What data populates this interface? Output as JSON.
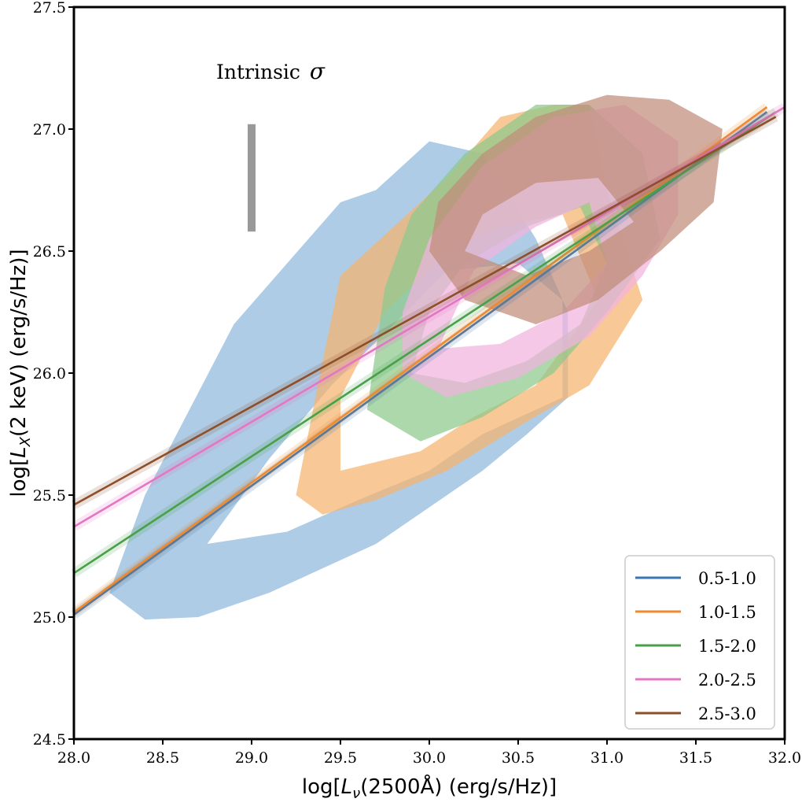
{
  "chart_data": {
    "type": "scatter",
    "title": "",
    "xlabel_parts": [
      "log[",
      "L",
      "ν",
      "(2500Å) (erg/s/Hz)]"
    ],
    "ylabel_parts": [
      "log[",
      "L",
      "X",
      "(2 keV) (erg/s/Hz)]"
    ],
    "xlim": [
      28.0,
      32.0
    ],
    "ylim": [
      24.5,
      27.5
    ],
    "xticks": [
      28.0,
      28.5,
      29.0,
      29.5,
      30.0,
      30.5,
      31.0,
      31.5,
      32.0
    ],
    "yticks": [
      24.5,
      25.0,
      25.5,
      26.0,
      26.5,
      27.0,
      27.5
    ],
    "xtick_labels": [
      "28.0",
      "28.5",
      "29.0",
      "29.5",
      "30.0",
      "30.5",
      "31.0",
      "31.5",
      "32.0"
    ],
    "ytick_labels": [
      "24.5",
      "25.0",
      "25.5",
      "26.0",
      "26.5",
      "27.0",
      "27.5"
    ],
    "legend_position": "lower-right",
    "annotation": {
      "label": "Intrinsic",
      "symbol": "σ",
      "bar_x": 29.0,
      "bar_y": [
        26.58,
        27.02
      ]
    },
    "series": [
      {
        "name": "0.5-1.0",
        "color": "#3a75b0",
        "fill": "#8fb8dc",
        "fit": {
          "x": [
            28.0,
            31.9
          ],
          "y": [
            25.01,
            27.07
          ]
        },
        "contour_outer": [
          [
            28.2,
            25.1
          ],
          [
            28.4,
            24.99
          ],
          [
            28.7,
            25.0
          ],
          [
            29.1,
            25.1
          ],
          [
            29.4,
            25.2
          ],
          [
            29.7,
            25.3
          ],
          [
            30.0,
            25.45
          ],
          [
            30.3,
            25.6
          ],
          [
            30.55,
            25.75
          ],
          [
            30.78,
            25.9
          ],
          [
            30.78,
            26.25
          ],
          [
            30.6,
            26.55
          ],
          [
            30.3,
            26.9
          ],
          [
            30.0,
            26.95
          ],
          [
            29.7,
            26.75
          ],
          [
            29.5,
            26.7
          ],
          [
            29.2,
            26.45
          ],
          [
            28.9,
            26.2
          ],
          [
            28.65,
            25.85
          ],
          [
            28.4,
            25.5
          ],
          [
            28.2,
            25.1
          ]
        ],
        "contour_inner": [
          [
            28.75,
            25.3
          ],
          [
            29.2,
            25.35
          ],
          [
            29.6,
            25.48
          ],
          [
            30.0,
            25.6
          ],
          [
            30.3,
            25.75
          ],
          [
            30.75,
            25.9
          ],
          [
            30.75,
            26.3
          ],
          [
            30.5,
            26.45
          ],
          [
            30.1,
            26.42
          ],
          [
            29.8,
            26.2
          ],
          [
            29.45,
            25.95
          ],
          [
            29.1,
            25.65
          ],
          [
            28.75,
            25.3
          ]
        ]
      },
      {
        "name": "1.0-1.5",
        "color": "#ef8a2e",
        "fill": "#f6b36f",
        "fit": {
          "x": [
            28.0,
            31.9
          ],
          "y": [
            25.02,
            27.09
          ]
        },
        "contour_outer": [
          [
            29.25,
            25.5
          ],
          [
            29.4,
            25.42
          ],
          [
            29.7,
            25.48
          ],
          [
            30.1,
            25.6
          ],
          [
            30.5,
            25.78
          ],
          [
            30.9,
            25.95
          ],
          [
            31.2,
            26.3
          ],
          [
            31.0,
            26.75
          ],
          [
            30.9,
            27.1
          ],
          [
            30.7,
            27.1
          ],
          [
            30.4,
            27.05
          ],
          [
            30.1,
            26.8
          ],
          [
            29.8,
            26.6
          ],
          [
            29.5,
            26.4
          ],
          [
            29.4,
            26.05
          ],
          [
            29.25,
            25.5
          ]
        ],
        "contour_inner": [
          [
            29.5,
            25.6
          ],
          [
            29.95,
            25.68
          ],
          [
            30.25,
            25.82
          ],
          [
            30.6,
            25.95
          ],
          [
            30.95,
            26.3
          ],
          [
            30.75,
            26.65
          ],
          [
            30.4,
            26.6
          ],
          [
            30.1,
            26.5
          ],
          [
            29.75,
            26.25
          ],
          [
            29.5,
            25.9
          ],
          [
            29.5,
            25.6
          ]
        ]
      },
      {
        "name": "1.5-2.0",
        "color": "#4aa04a",
        "fill": "#8cc98c",
        "fit": {
          "x": [
            28.0,
            31.95
          ],
          "y": [
            25.18,
            27.07
          ]
        },
        "contour_outer": [
          [
            29.65,
            25.85
          ],
          [
            29.95,
            25.72
          ],
          [
            30.3,
            25.82
          ],
          [
            30.7,
            26.0
          ],
          [
            31.0,
            26.25
          ],
          [
            31.3,
            26.55
          ],
          [
            31.2,
            26.9
          ],
          [
            30.9,
            27.1
          ],
          [
            30.6,
            27.1
          ],
          [
            30.2,
            26.9
          ],
          [
            29.9,
            26.65
          ],
          [
            29.75,
            26.35
          ],
          [
            29.65,
            25.85
          ]
        ],
        "contour_inner": [
          [
            29.9,
            26.0
          ],
          [
            30.2,
            25.96
          ],
          [
            30.55,
            26.05
          ],
          [
            30.85,
            26.2
          ],
          [
            31.0,
            26.45
          ],
          [
            30.85,
            26.68
          ],
          [
            30.55,
            26.6
          ],
          [
            30.2,
            26.45
          ],
          [
            30.0,
            26.25
          ],
          [
            29.9,
            26.0
          ]
        ]
      },
      {
        "name": "2.0-2.5",
        "color": "#e377c2",
        "fill": "#f2b3df",
        "fit": {
          "x": [
            28.0,
            32.0
          ],
          "y": [
            25.37,
            27.09
          ]
        },
        "contour_outer": [
          [
            29.85,
            26.0
          ],
          [
            30.1,
            25.9
          ],
          [
            30.5,
            25.98
          ],
          [
            30.9,
            26.15
          ],
          [
            31.2,
            26.4
          ],
          [
            31.4,
            26.65
          ],
          [
            31.4,
            26.95
          ],
          [
            31.1,
            27.1
          ],
          [
            30.7,
            27.05
          ],
          [
            30.3,
            26.85
          ],
          [
            30.0,
            26.55
          ],
          [
            29.85,
            26.25
          ],
          [
            29.85,
            26.0
          ]
        ],
        "contour_inner": [
          [
            30.05,
            26.1
          ],
          [
            30.4,
            26.12
          ],
          [
            30.75,
            26.25
          ],
          [
            31.0,
            26.45
          ],
          [
            30.9,
            26.7
          ],
          [
            30.6,
            26.6
          ],
          [
            30.25,
            26.42
          ],
          [
            30.05,
            26.1
          ]
        ]
      },
      {
        "name": "2.5-3.0",
        "color": "#8c4f2a",
        "fill": "#c08c7a",
        "fit": {
          "x": [
            28.0,
            31.95
          ],
          "y": [
            25.46,
            27.05
          ]
        },
        "contour_outer": [
          [
            30.0,
            26.5
          ],
          [
            30.2,
            26.3
          ],
          [
            30.6,
            26.2
          ],
          [
            30.95,
            26.3
          ],
          [
            31.3,
            26.5
          ],
          [
            31.6,
            26.7
          ],
          [
            31.65,
            27.0
          ],
          [
            31.35,
            27.12
          ],
          [
            31.0,
            27.14
          ],
          [
            30.6,
            27.05
          ],
          [
            30.3,
            26.9
          ],
          [
            30.05,
            26.7
          ],
          [
            30.0,
            26.5
          ]
        ],
        "contour_inner": [
          [
            30.2,
            26.5
          ],
          [
            30.55,
            26.4
          ],
          [
            30.9,
            26.5
          ],
          [
            31.15,
            26.62
          ],
          [
            30.95,
            26.8
          ],
          [
            30.6,
            26.78
          ],
          [
            30.3,
            26.65
          ],
          [
            30.2,
            26.5
          ]
        ]
      }
    ]
  }
}
